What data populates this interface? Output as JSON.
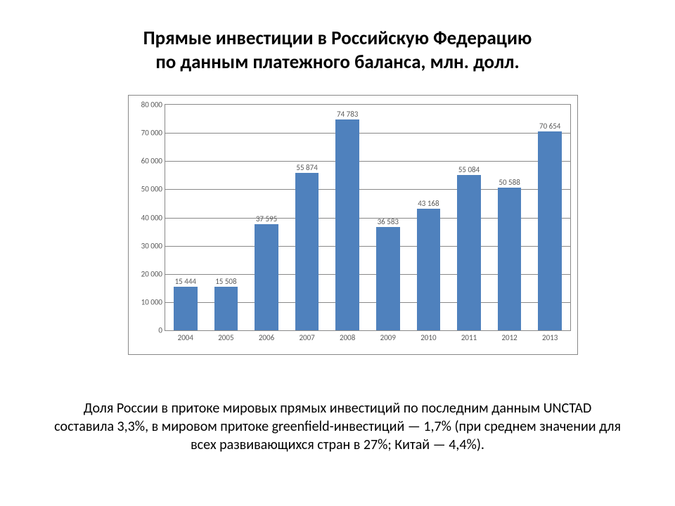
{
  "title_line1": "Прямые инвестиции в Российскую Федерацию",
  "title_line2": "по данным платежного баланса, млн. долл.",
  "caption": "Доля России в притоке мировых прямых инвестиций по последним данным UNCTAD составила 3,3%, в мировом притоке greenfield-инвестиций — 1,7% (при среднем значении для всех развивающихся стран в 27%; Китай — 4,4%).",
  "chart": {
    "type": "bar",
    "bar_color": "#4f81bd",
    "background_color": "#ffffff",
    "border_color": "#888888",
    "grid_color": "#888888",
    "text_color": "#595959",
    "label_fontsize": 11,
    "ylim": [
      0,
      80000
    ],
    "ytick_step": 10000,
    "yticks": [
      "0",
      "10 000",
      "20 000",
      "30 000",
      "40 000",
      "50 000",
      "60 000",
      "70 000",
      "80 000"
    ],
    "categories": [
      "2004",
      "2005",
      "2006",
      "2007",
      "2008",
      "2009",
      "2010",
      "2011",
      "2012",
      "2013"
    ],
    "values": [
      15444,
      15508,
      37595,
      55874,
      74783,
      36583,
      43168,
      55084,
      50588,
      70654
    ],
    "value_labels": [
      "15 444",
      "15 508",
      "37 595",
      "55 874",
      "74 783",
      "36 583",
      "43 168",
      "55 084",
      "50 588",
      "70 654"
    ],
    "bar_width": 0.58
  }
}
